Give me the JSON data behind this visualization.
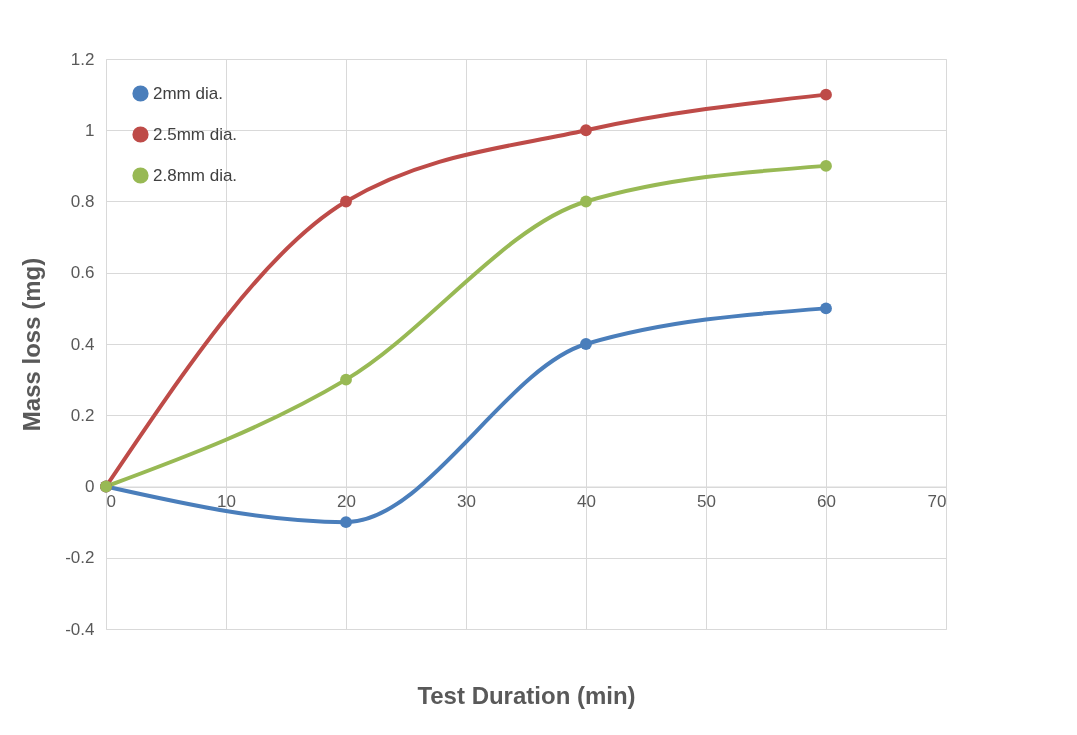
{
  "chart_data": {
    "type": "line",
    "xlabel": "Test Duration (min)",
    "ylabel": "Mass loss (mg)",
    "x": [
      0,
      20,
      40,
      60
    ],
    "series": [
      {
        "name": "2mm dia.",
        "color": "#4a7ebb",
        "values": [
          0,
          -0.1,
          0.4,
          0.5
        ]
      },
      {
        "name": "2.5mm dia.",
        "color": "#be4b48",
        "values": [
          0,
          0.8,
          1.0,
          1.1
        ]
      },
      {
        "name": "2.8mm dia.",
        "color": "#98b954",
        "values": [
          0,
          0.3,
          0.8,
          0.9
        ]
      }
    ],
    "xlim": [
      0,
      70
    ],
    "xticks": [
      0,
      10,
      20,
      30,
      40,
      50,
      60,
      70
    ],
    "ylim": [
      -0.4,
      1.2
    ],
    "yticks": [
      -0.4,
      -0.2,
      0,
      0.2,
      0.4,
      0.6,
      0.8,
      1,
      1.2
    ],
    "grid": true,
    "legend": "top left",
    "marker": "circle",
    "line_style": "solid"
  }
}
